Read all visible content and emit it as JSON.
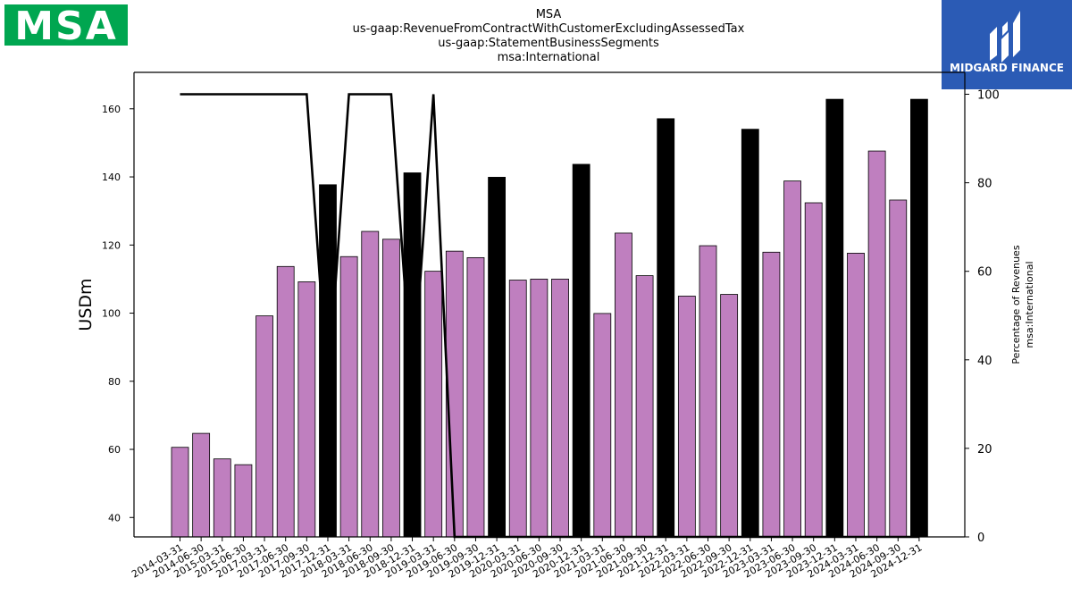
{
  "header": {
    "left_logo_text": "MSA",
    "right_logo_text": "MIDGARD FINANCE"
  },
  "colors": {
    "bar_default": "#bf7fbf",
    "bar_highlight": "#000000",
    "line": "#000000",
    "left_logo_bg": "#00a650",
    "right_logo_bg": "#2b5bb5"
  },
  "chart_data": {
    "type": "bar",
    "title_lines": [
      "MSA",
      "us-gaap:RevenueFromContractWithCustomerExcludingAssessedTax",
      "us-gaap:StatementBusinessSegments",
      "msa:International"
    ],
    "ylabel": "USDm",
    "ylabel_right": [
      "Percentage of Revenues",
      "msa:International"
    ],
    "ylim": [
      34.3,
      170.7
    ],
    "ylim_right": [
      0,
      100
    ],
    "yticks": [
      40,
      60,
      80,
      100,
      120,
      140,
      160
    ],
    "yticks_right": [
      0,
      20,
      40,
      60,
      80,
      100
    ],
    "categories": [
      "2014-03-31",
      "2014-06-30",
      "2015-03-31",
      "2015-06-30",
      "2017-03-31",
      "2017-06-30",
      "2017-09-30",
      "2017-12-31",
      "2018-03-31",
      "2018-06-30",
      "2018-09-30",
      "2018-12-31",
      "2019-03-31",
      "2019-06-30",
      "2019-09-30",
      "2019-12-31",
      "2020-03-31",
      "2020-06-30",
      "2020-09-30",
      "2020-12-31",
      "2021-03-31",
      "2021-06-30",
      "2021-09-30",
      "2021-12-31",
      "2022-03-31",
      "2022-06-30",
      "2022-09-30",
      "2022-12-31",
      "2023-03-31",
      "2023-06-30",
      "2023-09-30",
      "2023-12-31",
      "2024-03-31",
      "2024-06-30",
      "2024-09-30",
      "2024-12-31"
    ],
    "series": [
      {
        "values": [
          60.6,
          64.7,
          57.2,
          55.5,
          99.2,
          113.7,
          109.2,
          137.7,
          116.6,
          124.0,
          121.7,
          141.2,
          112.3,
          118.2,
          116.3,
          139.9,
          109.7,
          110.0,
          110.0,
          143.7,
          99.9,
          123.5,
          111.0,
          157.1,
          105.0,
          119.8,
          105.5,
          154.0,
          117.9,
          138.8,
          132.4,
          162.8,
          117.6,
          147.6,
          133.2,
          162.8
        ],
        "highlight": [
          false,
          false,
          false,
          false,
          false,
          false,
          false,
          true,
          false,
          false,
          false,
          true,
          false,
          false,
          false,
          true,
          false,
          false,
          false,
          true,
          false,
          false,
          false,
          true,
          false,
          false,
          false,
          true,
          false,
          false,
          false,
          true,
          false,
          false,
          false,
          true
        ]
      },
      {
        "axis": "right",
        "type": "line",
        "values": [
          100,
          100,
          100,
          100,
          100,
          100,
          100,
          null,
          100,
          100,
          100,
          null,
          100,
          0,
          0,
          0,
          0,
          0,
          0,
          0,
          0,
          0,
          0,
          0,
          0,
          0,
          0,
          0,
          0,
          0,
          0,
          0,
          0,
          0,
          0,
          0
        ]
      }
    ],
    "grid": false,
    "legend": "none"
  }
}
